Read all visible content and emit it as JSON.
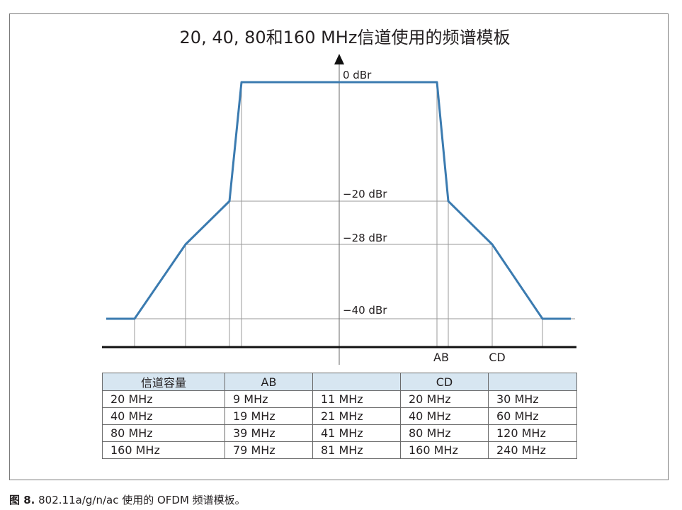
{
  "diagram": {
    "title": "20, 40, 80和160 MHz信道使用的频谱模板",
    "levels": [
      {
        "label": "0 dBr",
        "value": 0
      },
      {
        "label": "−20 dBr",
        "value": -20
      },
      {
        "label": "−28 dBr",
        "value": -28
      },
      {
        "label": "−40 dBr",
        "value": -40
      }
    ],
    "markers": {
      "ab": "AB",
      "cd": "CD"
    },
    "colors": {
      "mask": "#3b7bb0",
      "grid": "#9a9a9a",
      "axis": "#111111",
      "header": "#d7e6f1"
    }
  },
  "table": {
    "headers": [
      "信道容量",
      "AB",
      "",
      "CD",
      ""
    ],
    "rows": [
      [
        "20 MHz",
        "9 MHz",
        "11 MHz",
        "20 MHz",
        "30 MHz"
      ],
      [
        "40 MHz",
        "19 MHz",
        "21 MHz",
        "40 MHz",
        "60 MHz"
      ],
      [
        "80 MHz",
        "39 MHz",
        "41 MHz",
        "80 MHz",
        "120 MHz"
      ],
      [
        "160 MHz",
        "79 MHz",
        "81 MHz",
        "160 MHz",
        "240 MHz"
      ]
    ]
  },
  "caption": {
    "figure_label": "图 8.",
    "text": "802.11a/g/n/ac 使用的 OFDM 频谱模板。"
  }
}
